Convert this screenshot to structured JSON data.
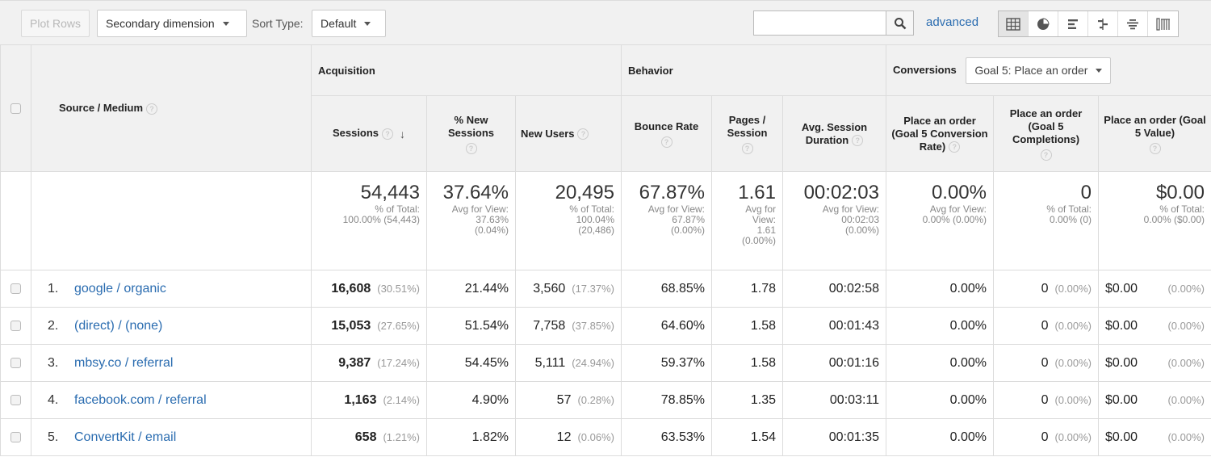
{
  "toolbar": {
    "plot_rows": "Plot Rows",
    "secondary_dimension": "Secondary dimension",
    "sort_type_label": "Sort Type:",
    "sort_type_value": "Default",
    "search_placeholder": "",
    "advanced": "advanced",
    "views": [
      "table-view-icon",
      "pie-view-icon",
      "bar-view-icon",
      "comparison-view-icon",
      "term-cloud-view-icon",
      "pivot-view-icon"
    ]
  },
  "groups": {
    "acquisition": "Acquisition",
    "behavior": "Behavior",
    "conversions": "Conversions",
    "goal_select": "Goal 5: Place an order"
  },
  "columns": {
    "source_medium": "Source / Medium",
    "sessions": "Sessions",
    "new_sessions": "% New Sessions",
    "new_users": "New Users",
    "bounce_rate": "Bounce Rate",
    "pages_session": "Pages / Session",
    "avg_duration": "Avg. Session Duration",
    "conv_rate": "Place an order (Goal 5 Conversion Rate)",
    "completions": "Place an order (Goal 5 Completions)",
    "value": "Place an order (Goal 5 Value)"
  },
  "totals": {
    "sessions": {
      "value": "54,443",
      "sub1": "% of Total:",
      "sub2": "100.00% (54,443)"
    },
    "new_sessions": {
      "value": "37.64%",
      "sub1": "Avg for View:",
      "sub2": "37.63%",
      "sub3": "(0.04%)"
    },
    "new_users": {
      "value": "20,495",
      "sub1": "% of Total:",
      "sub2": "100.04%",
      "sub3": "(20,486)"
    },
    "bounce_rate": {
      "value": "67.87%",
      "sub1": "Avg for View:",
      "sub2": "67.87%",
      "sub3": "(0.00%)"
    },
    "pages_session": {
      "value": "1.61",
      "sub1": "Avg for",
      "sub2": "View:",
      "sub3": "1.61",
      "sub4": "(0.00%)"
    },
    "avg_duration": {
      "value": "00:02:03",
      "sub1": "Avg for View:",
      "sub2": "00:02:03",
      "sub3": "(0.00%)"
    },
    "conv_rate": {
      "value": "0.00%",
      "sub1": "Avg for View:",
      "sub2": "0.00% (0.00%)"
    },
    "completions": {
      "value": "0",
      "sub1": "% of Total:",
      "sub2": "0.00% (0)"
    },
    "value": {
      "value": "$0.00",
      "sub1": "% of Total:",
      "sub2": "0.00% ($0.00)"
    }
  },
  "rows": [
    {
      "rank": "1.",
      "source": "google / organic",
      "sessions": "16,608",
      "sessions_pct": "(30.51%)",
      "new_sessions": "21.44%",
      "new_users": "3,560",
      "new_users_pct": "(17.37%)",
      "bounce_rate": "68.85%",
      "pages_session": "1.78",
      "avg_duration": "00:02:58",
      "conv_rate": "0.00%",
      "completions": "0",
      "completions_pct": "(0.00%)",
      "value": "$0.00",
      "value_pct": "(0.00%)"
    },
    {
      "rank": "2.",
      "source": "(direct) / (none)",
      "sessions": "15,053",
      "sessions_pct": "(27.65%)",
      "new_sessions": "51.54%",
      "new_users": "7,758",
      "new_users_pct": "(37.85%)",
      "bounce_rate": "64.60%",
      "pages_session": "1.58",
      "avg_duration": "00:01:43",
      "conv_rate": "0.00%",
      "completions": "0",
      "completions_pct": "(0.00%)",
      "value": "$0.00",
      "value_pct": "(0.00%)"
    },
    {
      "rank": "3.",
      "source": "mbsy.co / referral",
      "sessions": "9,387",
      "sessions_pct": "(17.24%)",
      "new_sessions": "54.45%",
      "new_users": "5,111",
      "new_users_pct": "(24.94%)",
      "bounce_rate": "59.37%",
      "pages_session": "1.58",
      "avg_duration": "00:01:16",
      "conv_rate": "0.00%",
      "completions": "0",
      "completions_pct": "(0.00%)",
      "value": "$0.00",
      "value_pct": "(0.00%)"
    },
    {
      "rank": "4.",
      "source": "facebook.com / referral",
      "sessions": "1,163",
      "sessions_pct": "(2.14%)",
      "new_sessions": "4.90%",
      "new_users": "57",
      "new_users_pct": "(0.28%)",
      "bounce_rate": "78.85%",
      "pages_session": "1.35",
      "avg_duration": "00:03:11",
      "conv_rate": "0.00%",
      "completions": "0",
      "completions_pct": "(0.00%)",
      "value": "$0.00",
      "value_pct": "(0.00%)"
    },
    {
      "rank": "5.",
      "source": "ConvertKit / email",
      "sessions": "658",
      "sessions_pct": "(1.21%)",
      "new_sessions": "1.82%",
      "new_users": "12",
      "new_users_pct": "(0.06%)",
      "bounce_rate": "63.53%",
      "pages_session": "1.54",
      "avg_duration": "00:01:35",
      "conv_rate": "0.00%",
      "completions": "0",
      "completions_pct": "(0.00%)",
      "value": "$0.00",
      "value_pct": "(0.00%)"
    }
  ],
  "colors": {
    "link": "#2a6cb0",
    "header_bg": "#f1f1f1",
    "border": "#dcdcdc"
  }
}
